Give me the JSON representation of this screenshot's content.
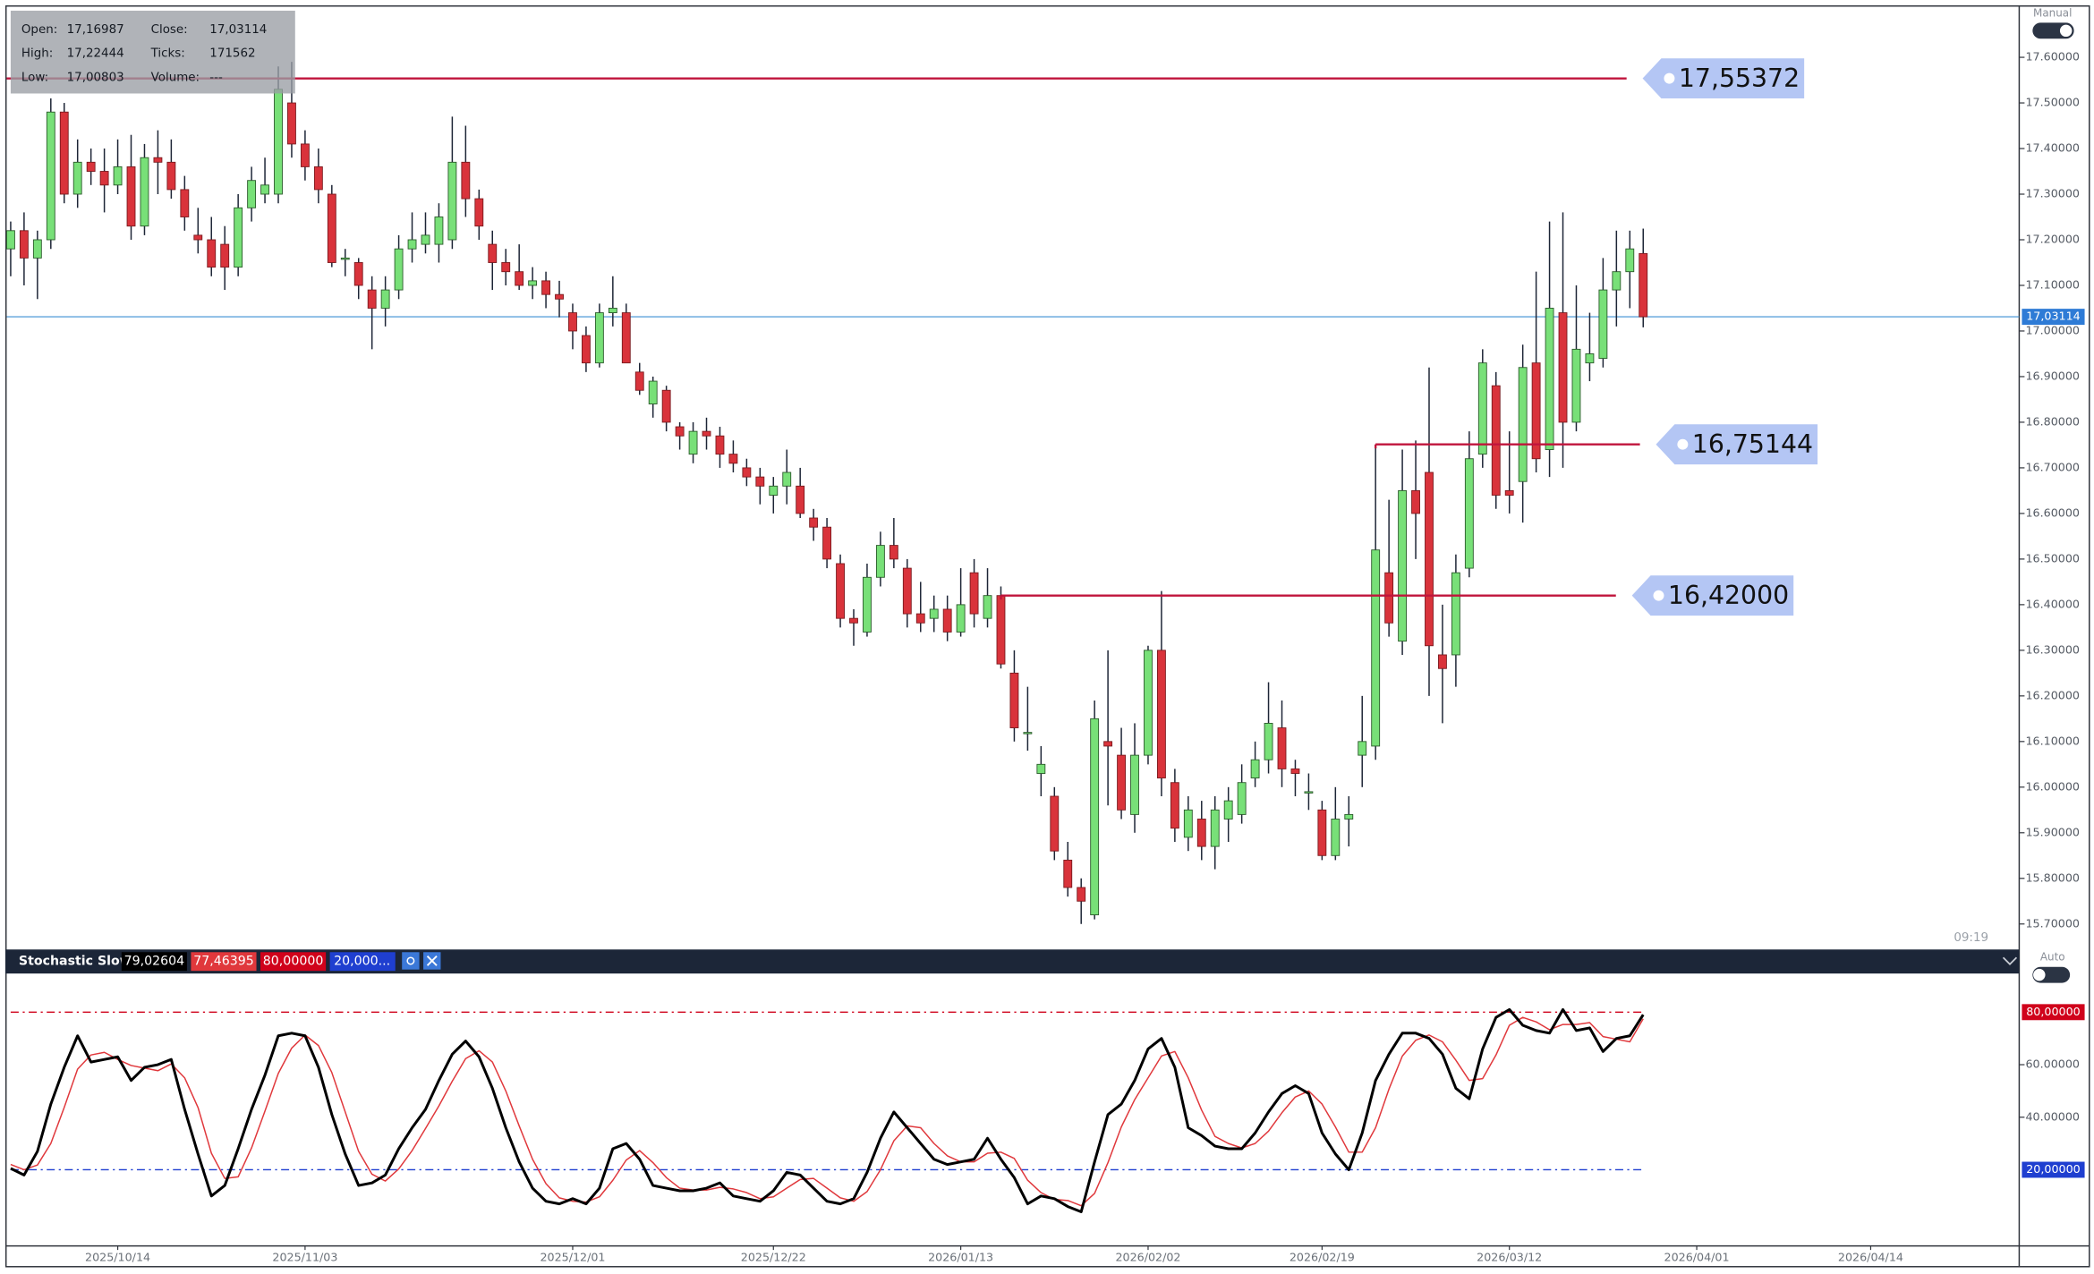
{
  "chart_data": [
    {
      "type": "candlestick",
      "up_color": "#78e078",
      "down_color": "#d9333b",
      "level_color": "#c0143c",
      "ylim": [
        15.647,
        17.711
      ],
      "yticks": [
        {
          "value": 17.6,
          "label": "17.60000"
        },
        {
          "value": 17.5,
          "label": "17.50000"
        },
        {
          "value": 17.4,
          "label": "17.40000"
        },
        {
          "value": 17.3,
          "label": "17.30000"
        },
        {
          "value": 17.2,
          "label": "17.20000"
        },
        {
          "value": 17.1,
          "label": "17.10000"
        },
        {
          "value": 17.0,
          "label": "17.00000"
        },
        {
          "value": 16.9,
          "label": "16.90000"
        },
        {
          "value": 16.8,
          "label": "16.80000"
        },
        {
          "value": 16.7,
          "label": "16.70000"
        },
        {
          "value": 16.6,
          "label": "16.60000"
        },
        {
          "value": 16.5,
          "label": "16.50000"
        },
        {
          "value": 16.4,
          "label": "16.40000"
        },
        {
          "value": 16.3,
          "label": "16.30000"
        },
        {
          "value": 16.2,
          "label": "16.20000"
        },
        {
          "value": 16.1,
          "label": "16.10000"
        },
        {
          "value": 16.0,
          "label": "16.00000"
        },
        {
          "value": 15.9,
          "label": "15.90000"
        },
        {
          "value": 15.8,
          "label": "15.80000"
        },
        {
          "value": 15.7,
          "label": "15.70000"
        }
      ],
      "last": {
        "value": 17.03114,
        "label": "17,03114"
      },
      "levels": [
        {
          "value": 17.55372,
          "label": "17,55372"
        },
        {
          "value": 16.75144,
          "label": "16,75144"
        },
        {
          "value": 16.42,
          "label": "16,42000"
        }
      ],
      "info": {
        "labels": [
          "Open:",
          "Close:",
          "High:",
          "Ticks:",
          "Low:",
          "Volume:"
        ],
        "values": [
          "17,16987",
          "17,03114",
          "17,22444",
          171562,
          "17,00803",
          "---"
        ]
      },
      "open": [
        17.18,
        17.22,
        17.16,
        17.2,
        17.48,
        17.3,
        17.37,
        17.35,
        17.32,
        17.36,
        17.23,
        17.38,
        17.37,
        17.31,
        17.21,
        17.2,
        17.19,
        17.14,
        17.27,
        17.3,
        17.3,
        17.5,
        17.41,
        17.36,
        17.3,
        17.16,
        17.15,
        17.09,
        17.05,
        17.09,
        17.18,
        17.19,
        17.19,
        17.2,
        17.37,
        17.29,
        17.19,
        17.15,
        17.13,
        17.1,
        17.11,
        17.08,
        17.04,
        16.99,
        16.93,
        17.04,
        17.04,
        16.91,
        16.84,
        16.87,
        16.79,
        16.73,
        16.78,
        16.77,
        16.73,
        16.7,
        16.68,
        16.64,
        16.66,
        16.66,
        16.59,
        16.57,
        16.49,
        16.37,
        16.34,
        16.46,
        16.53,
        16.48,
        16.38,
        16.37,
        16.39,
        16.34,
        16.47,
        16.37,
        16.42,
        16.25,
        16.12,
        16.03,
        15.98,
        15.84,
        15.78,
        15.72,
        16.1,
        16.07,
        15.94,
        16.07,
        16.3,
        16.01,
        15.89,
        15.93,
        15.87,
        15.93,
        15.94,
        16.02,
        16.06,
        16.13,
        16.04,
        15.99,
        15.95,
        15.85,
        15.93,
        16.07,
        16.09,
        16.47,
        16.32,
        16.65,
        16.69,
        16.29,
        16.29,
        16.48,
        16.73,
        16.88,
        16.65,
        16.67,
        16.93,
        16.74,
        17.04,
        16.8,
        16.93,
        16.94,
        17.09,
        17.13,
        17.16987,
        null,
        null,
        null,
        null,
        null,
        null,
        null,
        null,
        null,
        null,
        null,
        null,
        null,
        null,
        null,
        null,
        null,
        null,
        null,
        null,
        null,
        null,
        null,
        null,
        null,
        null,
        null,
        null
      ],
      "high": [
        17.24,
        17.26,
        17.22,
        17.51,
        17.5,
        17.42,
        17.4,
        17.4,
        17.42,
        17.43,
        17.41,
        17.44,
        17.42,
        17.34,
        17.27,
        17.25,
        17.23,
        17.3,
        17.36,
        17.38,
        17.58,
        17.59,
        17.44,
        17.4,
        17.32,
        17.18,
        17.16,
        17.12,
        17.12,
        17.21,
        17.26,
        17.26,
        17.28,
        17.47,
        17.45,
        17.31,
        17.22,
        17.18,
        17.19,
        17.14,
        17.13,
        17.11,
        17.06,
        17.01,
        17.06,
        17.12,
        17.06,
        16.93,
        16.9,
        16.88,
        16.8,
        16.8,
        16.81,
        16.79,
        16.76,
        16.72,
        16.7,
        16.68,
        16.74,
        16.7,
        16.61,
        16.59,
        16.51,
        16.39,
        16.49,
        16.56,
        16.59,
        16.5,
        16.45,
        16.42,
        16.42,
        16.48,
        16.5,
        16.48,
        16.44,
        16.3,
        16.22,
        16.09,
        16.0,
        15.88,
        15.8,
        16.19,
        16.3,
        16.13,
        16.14,
        16.31,
        16.43,
        16.04,
        15.98,
        15.97,
        15.98,
        16.0,
        16.05,
        16.1,
        16.23,
        16.19,
        16.06,
        16.03,
        15.97,
        16.0,
        15.98,
        16.2,
        16.75,
        16.63,
        16.74,
        16.76,
        16.92,
        16.4,
        16.51,
        16.78,
        16.96,
        16.91,
        16.78,
        16.97,
        17.13,
        17.24,
        17.26,
        17.1,
        17.04,
        17.16,
        17.22,
        17.22,
        17.22444,
        null,
        null,
        null,
        null,
        null,
        null,
        null,
        null,
        null,
        null,
        null,
        null,
        null,
        null,
        null,
        null,
        null,
        null,
        null,
        null,
        null,
        null,
        null,
        null,
        null,
        null,
        null,
        null
      ],
      "low": [
        17.12,
        17.1,
        17.07,
        17.18,
        17.28,
        17.27,
        17.32,
        17.26,
        17.3,
        17.2,
        17.21,
        17.3,
        17.29,
        17.22,
        17.17,
        17.12,
        17.09,
        17.12,
        17.24,
        17.28,
        17.28,
        17.38,
        17.33,
        17.28,
        17.14,
        17.12,
        17.07,
        16.96,
        17.01,
        17.07,
        17.15,
        17.17,
        17.15,
        17.18,
        17.25,
        17.2,
        17.09,
        17.1,
        17.09,
        17.07,
        17.05,
        17.03,
        16.96,
        16.91,
        16.92,
        17.01,
        16.93,
        16.86,
        16.81,
        16.78,
        16.74,
        16.71,
        16.74,
        16.7,
        16.69,
        16.66,
        16.62,
        16.6,
        16.62,
        16.59,
        16.54,
        16.48,
        16.35,
        16.31,
        16.33,
        16.44,
        16.48,
        16.35,
        16.34,
        16.34,
        16.32,
        16.33,
        16.35,
        16.35,
        16.26,
        16.1,
        16.08,
        15.98,
        15.84,
        15.76,
        15.7,
        15.71,
        15.96,
        15.93,
        15.9,
        16.05,
        15.98,
        15.88,
        15.86,
        15.84,
        15.82,
        15.88,
        15.92,
        16.0,
        16.03,
        16.0,
        15.98,
        15.95,
        15.84,
        15.84,
        15.87,
        16.0,
        16.06,
        16.33,
        16.29,
        16.5,
        16.2,
        16.14,
        16.22,
        16.46,
        16.7,
        16.61,
        16.6,
        16.58,
        16.69,
        16.68,
        16.7,
        16.78,
        16.89,
        16.92,
        17.01,
        17.05,
        17.00803,
        null,
        null,
        null,
        null,
        null,
        null,
        null,
        null,
        null,
        null,
        null,
        null,
        null,
        null,
        null,
        null,
        null,
        null,
        null,
        null,
        null,
        null,
        null,
        null,
        null,
        null,
        null,
        null
      ],
      "close": [
        17.22,
        17.16,
        17.2,
        17.48,
        17.3,
        17.37,
        17.35,
        17.32,
        17.36,
        17.23,
        17.38,
        17.37,
        17.31,
        17.25,
        17.2,
        17.14,
        17.14,
        17.27,
        17.33,
        17.32,
        17.53,
        17.41,
        17.36,
        17.31,
        17.15,
        17.16,
        17.1,
        17.05,
        17.09,
        17.18,
        17.2,
        17.21,
        17.25,
        17.37,
        17.29,
        17.23,
        17.15,
        17.13,
        17.1,
        17.11,
        17.08,
        17.07,
        17.0,
        16.93,
        17.04,
        17.05,
        16.93,
        16.87,
        16.89,
        16.8,
        16.77,
        16.78,
        16.77,
        16.73,
        16.71,
        16.68,
        16.66,
        16.66,
        16.69,
        16.6,
        16.57,
        16.5,
        16.37,
        16.36,
        16.46,
        16.53,
        16.5,
        16.38,
        16.36,
        16.39,
        16.34,
        16.4,
        16.38,
        16.42,
        16.27,
        16.13,
        16.12,
        16.05,
        15.86,
        15.78,
        15.75,
        16.15,
        16.09,
        15.95,
        16.07,
        16.3,
        16.02,
        15.91,
        15.95,
        15.87,
        15.95,
        15.97,
        16.01,
        16.06,
        16.14,
        16.04,
        16.03,
        15.99,
        15.85,
        15.93,
        15.94,
        16.1,
        16.52,
        16.36,
        16.65,
        16.6,
        16.31,
        16.26,
        16.47,
        16.72,
        16.93,
        16.64,
        16.64,
        16.92,
        16.72,
        17.05,
        16.8,
        16.96,
        16.95,
        17.09,
        17.13,
        17.18,
        17.03114,
        null,
        null,
        null,
        null,
        null,
        null,
        null,
        null,
        null,
        null,
        null,
        null,
        null,
        null,
        null,
        null,
        null,
        null,
        null,
        null,
        null,
        null,
        null,
        null,
        null,
        null,
        null,
        null
      ]
    },
    {
      "type": "line",
      "header": {
        "title": "Stochastic Slow",
        "values": [
          "79,02604",
          "77,46395",
          "80,00000",
          "20,000..."
        ]
      },
      "ylim": [
        -8.5,
        94.7
      ],
      "yticks": [
        {
          "value": 60,
          "label": "60.00000"
        },
        {
          "value": 40,
          "label": "40.00000"
        }
      ],
      "levels": [
        {
          "value": 80,
          "label": "80,00000",
          "color": "#d0021b"
        },
        {
          "value": 20,
          "label": "20,00000",
          "color": "#1f3fd0"
        }
      ],
      "categories": [
        null,
        null,
        null,
        null,
        null,
        null,
        null,
        null,
        "2025/10/14",
        null,
        null,
        null,
        null,
        null,
        null,
        null,
        null,
        null,
        null,
        null,
        null,
        null,
        "2025/11/03",
        null,
        null,
        null,
        null,
        null,
        null,
        null,
        null,
        null,
        null,
        null,
        null,
        null,
        null,
        null,
        null,
        null,
        null,
        null,
        "2025/12/01",
        null,
        null,
        null,
        null,
        null,
        null,
        null,
        null,
        null,
        null,
        null,
        null,
        null,
        null,
        "2025/12/22",
        null,
        null,
        null,
        null,
        null,
        null,
        null,
        null,
        null,
        null,
        null,
        null,
        null,
        "2026/01/13",
        null,
        null,
        null,
        null,
        null,
        null,
        null,
        null,
        null,
        null,
        null,
        null,
        null,
        "2026/02/02",
        null,
        null,
        null,
        null,
        null,
        null,
        null,
        null,
        null,
        null,
        null,
        null,
        "2026/02/19",
        null,
        null,
        null,
        null,
        null,
        null,
        null,
        null,
        null,
        null,
        null,
        null,
        null,
        "2026/03/12",
        null,
        null,
        null,
        null,
        null,
        null,
        null,
        null,
        null,
        null,
        null,
        null,
        null,
        "2026/04/01",
        null,
        null,
        null,
        null,
        null,
        null,
        null,
        null,
        null,
        null,
        null,
        null,
        "2026/04/14",
        null,
        null,
        null,
        null,
        null,
        null,
        null,
        null,
        null,
        null,
        null
      ],
      "series": [
        {
          "color": "#000000",
          "values": [
            20.5,
            18,
            27,
            45,
            59,
            71,
            61,
            62,
            63,
            54,
            59,
            60,
            62,
            43,
            26,
            10,
            14,
            28,
            43,
            56,
            71,
            72,
            71,
            59,
            41,
            26,
            14,
            15,
            18,
            28,
            36,
            43,
            54,
            64,
            69,
            63,
            51,
            36,
            23,
            13,
            8,
            7,
            9,
            7,
            13,
            28,
            30,
            24,
            14,
            13,
            12,
            12,
            13,
            15,
            10,
            9,
            8,
            12,
            19,
            18,
            13,
            8,
            7,
            9,
            19,
            32,
            42,
            36,
            30,
            24,
            22,
            23,
            24,
            32,
            24,
            17,
            7,
            10,
            9,
            6,
            4,
            23,
            41,
            45,
            54,
            66,
            70,
            59,
            36,
            33,
            29,
            28,
            28,
            34,
            42,
            49,
            52,
            49,
            34,
            26,
            20,
            34,
            54,
            64,
            72,
            72,
            70,
            64,
            51,
            47,
            66,
            78,
            81,
            75,
            73,
            72,
            81,
            73,
            74,
            65,
            70,
            71,
            79.02604,
            null,
            null,
            null,
            null,
            null,
            null,
            null,
            null,
            null,
            null,
            null,
            null,
            null,
            null,
            null,
            null,
            null,
            null,
            null,
            null,
            null,
            null,
            null,
            null,
            null,
            null,
            null,
            null
          ]
        },
        {
          "color": "#e0383c",
          "values": [
            22,
            20,
            21.8,
            30,
            43.7,
            58.3,
            63.7,
            64.7,
            62,
            59.7,
            58.7,
            57.7,
            60.3,
            55,
            43.7,
            26.3,
            16.7,
            17.3,
            28.3,
            42.3,
            56.7,
            66.3,
            71.3,
            67.3,
            57,
            42,
            27,
            18.3,
            15.7,
            20.3,
            27.3,
            35.7,
            44.3,
            53.7,
            62.3,
            65.3,
            61,
            50,
            36.7,
            24,
            14.7,
            9.3,
            8,
            7.7,
            9.7,
            16,
            23.7,
            27.3,
            22.7,
            17,
            13,
            12.3,
            12.3,
            13.3,
            12.7,
            11.3,
            9,
            9.7,
            13,
            16.3,
            16.7,
            13,
            9.3,
            8,
            11.7,
            20,
            31,
            36.7,
            36,
            30,
            25.3,
            23,
            23,
            26.3,
            26.7,
            24.3,
            16,
            11.3,
            8.7,
            8.3,
            6.3,
            11,
            22.7,
            36.3,
            46.7,
            55,
            63.3,
            65,
            55,
            42.7,
            32.7,
            30,
            28.3,
            30,
            34.7,
            41.7,
            47.7,
            50,
            45,
            36.3,
            26.7,
            26.7,
            36,
            50.7,
            63.3,
            69.3,
            71.3,
            68.7,
            61.7,
            54,
            54.7,
            63.7,
            75,
            78,
            76.3,
            73.3,
            75.3,
            75.3,
            76,
            70.7,
            69.7,
            68.7,
            77.46395,
            null,
            null,
            null,
            null,
            null,
            null,
            null,
            null,
            null,
            null,
            null,
            null,
            null,
            null,
            null,
            null,
            null,
            null,
            null,
            null,
            null,
            null,
            null,
            null,
            null,
            null,
            null,
            null
          ]
        }
      ]
    }
  ],
  "ui": {
    "manual": "Manual",
    "auto": "Auto",
    "time": "09:19"
  }
}
